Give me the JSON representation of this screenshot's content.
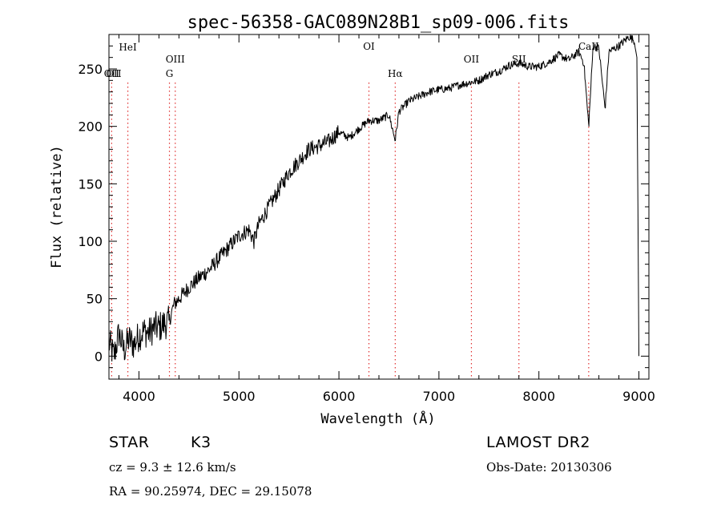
{
  "chart_data": {
    "type": "line",
    "title": "spec-56358-GAC089N28B1_sp09-006.fits",
    "xlabel": "Wavelength (Å)",
    "ylabel": "Flux (relative)",
    "xlim": [
      3700,
      9100
    ],
    "ylim": [
      -20,
      280
    ],
    "xticks": [
      4000,
      5000,
      6000,
      7000,
      8000,
      9000
    ],
    "yticks": [
      0,
      50,
      100,
      150,
      200,
      250
    ],
    "grid": false,
    "series": [
      {
        "color": "#000000",
        "x": [
          3700,
          3750,
          3800,
          3850,
          3900,
          3950,
          4000,
          4050,
          4100,
          4150,
          4200,
          4250,
          4300,
          4350,
          4400,
          4450,
          4500,
          4600,
          4700,
          4800,
          4900,
          5000,
          5100,
          5150,
          5200,
          5300,
          5400,
          5500,
          5600,
          5700,
          5800,
          5900,
          6000,
          6100,
          6200,
          6300,
          6400,
          6500,
          6563,
          6600,
          6700,
          6800,
          6900,
          7000,
          7100,
          7200,
          7300,
          7400,
          7500,
          7600,
          7700,
          7800,
          7900,
          8000,
          8100,
          8200,
          8300,
          8400,
          8450,
          8498,
          8542,
          8600,
          8662,
          8700,
          8800,
          8900,
          8950,
          8980,
          9000
        ],
        "y": [
          12,
          0,
          20,
          5,
          15,
          10,
          18,
          22,
          20,
          25,
          25,
          28,
          30,
          45,
          50,
          55,
          60,
          68,
          75,
          85,
          95,
          105,
          110,
          100,
          115,
          130,
          145,
          160,
          170,
          180,
          183,
          187,
          195,
          190,
          198,
          205,
          205,
          210,
          188,
          213,
          222,
          226,
          230,
          232,
          233,
          236,
          238,
          240,
          245,
          248,
          253,
          255,
          252,
          252,
          256,
          262,
          258,
          265,
          255,
          200,
          270,
          268,
          215,
          265,
          270,
          278,
          275,
          260,
          0
        ]
      }
    ],
    "lines": [
      {
        "name": "HeI",
        "x": 3889
      },
      {
        "name": "OII",
        "x": 3727
      },
      {
        "name": "G",
        "x": 4305
      },
      {
        "name": "OIII",
        "x": 4363
      },
      {
        "name": "OI",
        "x": 6300
      },
      {
        "name": "Hα",
        "x": 6563
      },
      {
        "name": "OII",
        "x": 7325
      },
      {
        "name": "SII",
        "x": 7800
      },
      {
        "name": "CaII",
        "x": 8498
      }
    ]
  },
  "info": {
    "object_type": "STAR",
    "subclass": "K3",
    "survey": "LAMOST DR2",
    "redshift": "cz = 9.3 ± 12.6 km/s",
    "obs_date": "Obs-Date: 20130306",
    "coords": "RA =  90.25974, DEC =  29.15078"
  }
}
